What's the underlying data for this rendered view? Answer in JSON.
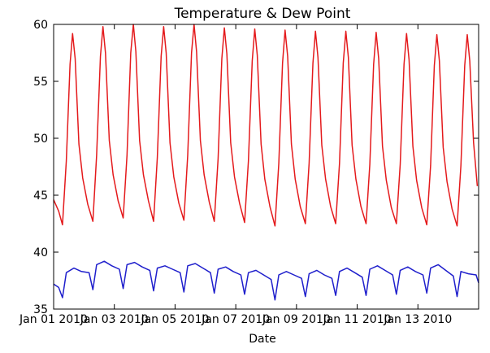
{
  "chart_data": {
    "type": "line",
    "title": "Temperature & Dew Point",
    "xlabel": "Date",
    "ylabel": "",
    "ylim": [
      35,
      60
    ],
    "xlim": [
      "2010-01-01",
      "2010-01-15"
    ],
    "yticks": [
      35,
      40,
      45,
      50,
      55,
      60
    ],
    "xticks": [
      {
        "date": "2010-01-01",
        "label": "Jan 01 2010"
      },
      {
        "date": "2010-01-03",
        "label": "Jan 03 2010"
      },
      {
        "date": "2010-01-05",
        "label": "Jan 05 2010"
      },
      {
        "date": "2010-01-07",
        "label": "Jan 07 2010"
      },
      {
        "date": "2010-01-09",
        "label": "Jan 09 2010"
      },
      {
        "date": "2010-01-11",
        "label": "Jan 11 2010"
      },
      {
        "date": "2010-01-13",
        "label": "Jan 13 2010"
      }
    ],
    "grid": false,
    "legend": "none",
    "series": [
      {
        "color": "#e41a1c",
        "points": [
          [
            "2010-01-01 00:00",
            44.6
          ],
          [
            "2010-01-01 04:00",
            43.6
          ],
          [
            "2010-01-01 07:00",
            42.4
          ],
          [
            "2010-01-01 10:00",
            48.0
          ],
          [
            "2010-01-01 13:00",
            56.5
          ],
          [
            "2010-01-01 15:00",
            59.2
          ],
          [
            "2010-01-01 17:00",
            57.0
          ],
          [
            "2010-01-01 20:00",
            49.5
          ],
          [
            "2010-01-01 23:00",
            46.5
          ],
          [
            "2010-01-02 03:00",
            44.2
          ],
          [
            "2010-01-02 07:00",
            42.7
          ],
          [
            "2010-01-02 10:00",
            48.5
          ],
          [
            "2010-01-02 13:00",
            57.2
          ],
          [
            "2010-01-02 15:00",
            59.8
          ],
          [
            "2010-01-02 17:00",
            57.5
          ],
          [
            "2010-01-02 20:00",
            49.8
          ],
          [
            "2010-01-02 23:00",
            46.8
          ],
          [
            "2010-01-03 03:00",
            44.5
          ],
          [
            "2010-01-03 07:00",
            43.0
          ],
          [
            "2010-01-03 10:00",
            48.5
          ],
          [
            "2010-01-03 13:00",
            57.5
          ],
          [
            "2010-01-03 15:00",
            60.0
          ],
          [
            "2010-01-03 17:00",
            57.6
          ],
          [
            "2010-01-03 20:00",
            49.8
          ],
          [
            "2010-01-03 23:00",
            46.8
          ],
          [
            "2010-01-04 03:00",
            44.5
          ],
          [
            "2010-01-04 07:00",
            42.7
          ],
          [
            "2010-01-04 10:00",
            48.3
          ],
          [
            "2010-01-04 13:00",
            57.2
          ],
          [
            "2010-01-04 15:00",
            59.8
          ],
          [
            "2010-01-04 17:00",
            57.5
          ],
          [
            "2010-01-04 20:00",
            49.6
          ],
          [
            "2010-01-04 23:00",
            46.6
          ],
          [
            "2010-01-05 03:00",
            44.3
          ],
          [
            "2010-01-05 07:00",
            42.8
          ],
          [
            "2010-01-05 10:00",
            48.5
          ],
          [
            "2010-01-05 13:00",
            57.5
          ],
          [
            "2010-01-05 15:00",
            60.0
          ],
          [
            "2010-01-05 17:00",
            57.6
          ],
          [
            "2010-01-05 20:00",
            49.8
          ],
          [
            "2010-01-05 23:00",
            46.8
          ],
          [
            "2010-01-06 03:00",
            44.4
          ],
          [
            "2010-01-06 07:00",
            42.7
          ],
          [
            "2010-01-06 10:00",
            48.2
          ],
          [
            "2010-01-06 13:00",
            57.0
          ],
          [
            "2010-01-06 15:00",
            59.7
          ],
          [
            "2010-01-06 17:00",
            57.4
          ],
          [
            "2010-01-06 20:00",
            49.6
          ],
          [
            "2010-01-06 23:00",
            46.6
          ],
          [
            "2010-01-07 03:00",
            44.3
          ],
          [
            "2010-01-07 07:00",
            42.6
          ],
          [
            "2010-01-07 10:00",
            48.0
          ],
          [
            "2010-01-07 13:00",
            56.8
          ],
          [
            "2010-01-07 15:00",
            59.6
          ],
          [
            "2010-01-07 17:00",
            57.3
          ],
          [
            "2010-01-07 20:00",
            49.5
          ],
          [
            "2010-01-07 23:00",
            46.4
          ],
          [
            "2010-01-08 03:00",
            44.0
          ],
          [
            "2010-01-08 07:00",
            42.3
          ],
          [
            "2010-01-08 10:00",
            47.8
          ],
          [
            "2010-01-08 13:00",
            56.6
          ],
          [
            "2010-01-08 15:00",
            59.5
          ],
          [
            "2010-01-08 17:00",
            57.2
          ],
          [
            "2010-01-08 20:00",
            49.5
          ],
          [
            "2010-01-08 23:00",
            46.4
          ],
          [
            "2010-01-09 03:00",
            44.0
          ],
          [
            "2010-01-09 07:00",
            42.5
          ],
          [
            "2010-01-09 10:00",
            47.8
          ],
          [
            "2010-01-09 13:00",
            56.6
          ],
          [
            "2010-01-09 15:00",
            59.4
          ],
          [
            "2010-01-09 17:00",
            57.1
          ],
          [
            "2010-01-09 20:00",
            49.4
          ],
          [
            "2010-01-09 23:00",
            46.4
          ],
          [
            "2010-01-10 03:00",
            44.0
          ],
          [
            "2010-01-10 07:00",
            42.5
          ],
          [
            "2010-01-10 10:00",
            47.8
          ],
          [
            "2010-01-10 13:00",
            56.6
          ],
          [
            "2010-01-10 15:00",
            59.4
          ],
          [
            "2010-01-10 17:00",
            57.1
          ],
          [
            "2010-01-10 20:00",
            49.4
          ],
          [
            "2010-01-10 23:00",
            46.4
          ],
          [
            "2010-01-11 03:00",
            44.0
          ],
          [
            "2010-01-11 07:00",
            42.5
          ],
          [
            "2010-01-11 10:00",
            47.7
          ],
          [
            "2010-01-11 13:00",
            56.5
          ],
          [
            "2010-01-11 15:00",
            59.3
          ],
          [
            "2010-01-11 17:00",
            57.0
          ],
          [
            "2010-01-11 20:00",
            49.3
          ],
          [
            "2010-01-11 23:00",
            46.3
          ],
          [
            "2010-01-12 03:00",
            43.9
          ],
          [
            "2010-01-12 07:00",
            42.5
          ],
          [
            "2010-01-12 10:00",
            47.7
          ],
          [
            "2010-01-12 13:00",
            56.5
          ],
          [
            "2010-01-12 15:00",
            59.2
          ],
          [
            "2010-01-12 17:00",
            56.9
          ],
          [
            "2010-01-12 20:00",
            49.3
          ],
          [
            "2010-01-12 23:00",
            46.3
          ],
          [
            "2010-01-13 03:00",
            43.9
          ],
          [
            "2010-01-13 07:00",
            42.4
          ],
          [
            "2010-01-13 10:00",
            47.6
          ],
          [
            "2010-01-13 13:00",
            56.4
          ],
          [
            "2010-01-13 15:00",
            59.1
          ],
          [
            "2010-01-13 17:00",
            56.8
          ],
          [
            "2010-01-13 20:00",
            49.2
          ],
          [
            "2010-01-13 23:00",
            46.2
          ],
          [
            "2010-01-14 03:00",
            43.8
          ],
          [
            "2010-01-14 07:00",
            42.3
          ],
          [
            "2010-01-14 10:00",
            47.6
          ],
          [
            "2010-01-14 13:00",
            56.4
          ],
          [
            "2010-01-14 15:00",
            59.1
          ],
          [
            "2010-01-14 17:00",
            56.8
          ],
          [
            "2010-01-14 20:00",
            49.6
          ],
          [
            "2010-01-14 23:00",
            45.8
          ]
        ]
      },
      {
        "color": "#1f1fcc",
        "points": [
          [
            "2010-01-01 00:00",
            37.2
          ],
          [
            "2010-01-01 04:00",
            36.9
          ],
          [
            "2010-01-01 07:00",
            36.0
          ],
          [
            "2010-01-01 10:00",
            38.2
          ],
          [
            "2010-01-01 16:00",
            38.6
          ],
          [
            "2010-01-01 22:00",
            38.3
          ],
          [
            "2010-01-02 04:00",
            38.2
          ],
          [
            "2010-01-02 07:00",
            36.7
          ],
          [
            "2010-01-02 10:00",
            38.9
          ],
          [
            "2010-01-02 16:00",
            39.2
          ],
          [
            "2010-01-02 22:00",
            38.8
          ],
          [
            "2010-01-03 04:00",
            38.5
          ],
          [
            "2010-01-03 07:00",
            36.8
          ],
          [
            "2010-01-03 10:00",
            38.9
          ],
          [
            "2010-01-03 16:00",
            39.1
          ],
          [
            "2010-01-03 22:00",
            38.7
          ],
          [
            "2010-01-04 04:00",
            38.4
          ],
          [
            "2010-01-04 07:00",
            36.6
          ],
          [
            "2010-01-04 10:00",
            38.6
          ],
          [
            "2010-01-04 16:00",
            38.8
          ],
          [
            "2010-01-04 22:00",
            38.5
          ],
          [
            "2010-01-05 04:00",
            38.2
          ],
          [
            "2010-01-05 07:00",
            36.5
          ],
          [
            "2010-01-05 10:00",
            38.8
          ],
          [
            "2010-01-05 16:00",
            39.0
          ],
          [
            "2010-01-05 22:00",
            38.6
          ],
          [
            "2010-01-06 04:00",
            38.2
          ],
          [
            "2010-01-06 07:00",
            36.4
          ],
          [
            "2010-01-06 10:00",
            38.5
          ],
          [
            "2010-01-06 16:00",
            38.7
          ],
          [
            "2010-01-06 22:00",
            38.3
          ],
          [
            "2010-01-07 04:00",
            38.0
          ],
          [
            "2010-01-07 07:00",
            36.3
          ],
          [
            "2010-01-07 10:00",
            38.2
          ],
          [
            "2010-01-07 16:00",
            38.4
          ],
          [
            "2010-01-07 22:00",
            38.0
          ],
          [
            "2010-01-08 04:00",
            37.6
          ],
          [
            "2010-01-08 07:00",
            35.8
          ],
          [
            "2010-01-08 10:00",
            38.0
          ],
          [
            "2010-01-08 16:00",
            38.3
          ],
          [
            "2010-01-08 22:00",
            38.0
          ],
          [
            "2010-01-09 04:00",
            37.7
          ],
          [
            "2010-01-09 07:00",
            36.1
          ],
          [
            "2010-01-09 10:00",
            38.1
          ],
          [
            "2010-01-09 16:00",
            38.4
          ],
          [
            "2010-01-09 22:00",
            38.0
          ],
          [
            "2010-01-10 04:00",
            37.7
          ],
          [
            "2010-01-10 07:00",
            36.2
          ],
          [
            "2010-01-10 10:00",
            38.3
          ],
          [
            "2010-01-10 16:00",
            38.6
          ],
          [
            "2010-01-10 22:00",
            38.2
          ],
          [
            "2010-01-11 04:00",
            37.8
          ],
          [
            "2010-01-11 07:00",
            36.2
          ],
          [
            "2010-01-11 10:00",
            38.5
          ],
          [
            "2010-01-11 16:00",
            38.8
          ],
          [
            "2010-01-11 22:00",
            38.4
          ],
          [
            "2010-01-12 04:00",
            38.0
          ],
          [
            "2010-01-12 07:00",
            36.3
          ],
          [
            "2010-01-12 10:00",
            38.4
          ],
          [
            "2010-01-12 16:00",
            38.7
          ],
          [
            "2010-01-12 22:00",
            38.3
          ],
          [
            "2010-01-13 04:00",
            38.0
          ],
          [
            "2010-01-13 07:00",
            36.4
          ],
          [
            "2010-01-13 10:00",
            38.6
          ],
          [
            "2010-01-13 16:00",
            38.9
          ],
          [
            "2010-01-13 22:00",
            38.4
          ],
          [
            "2010-01-14 04:00",
            37.9
          ],
          [
            "2010-01-14 07:00",
            36.1
          ],
          [
            "2010-01-14 10:00",
            38.3
          ],
          [
            "2010-01-14 16:00",
            38.1
          ],
          [
            "2010-01-14 22:00",
            38.0
          ],
          [
            "2010-01-15 00:00",
            37.3
          ]
        ]
      }
    ]
  }
}
